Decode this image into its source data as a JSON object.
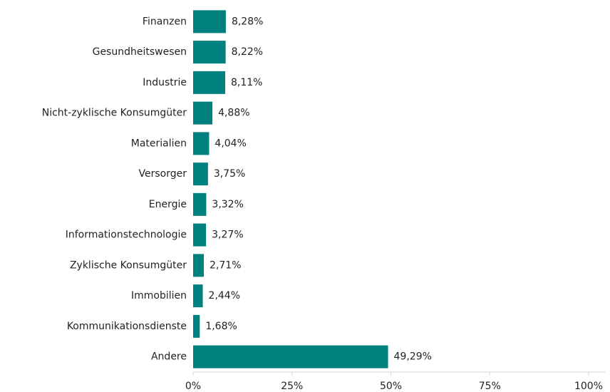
{
  "chart_data": {
    "type": "bar",
    "orientation": "horizontal",
    "categories": [
      "Finanzen",
      "Gesundheitswesen",
      "Industrie",
      "Nicht-zyklische Konsumgüter",
      "Materialien",
      "Versorger",
      "Energie",
      "Informationstechnologie",
      "Zyklische Konsumgüter",
      "Immobilien",
      "Kommunikationsdienste",
      "Andere"
    ],
    "values": [
      8.28,
      8.22,
      8.11,
      4.88,
      4.04,
      3.75,
      3.32,
      3.27,
      2.71,
      2.44,
      1.68,
      49.29
    ],
    "value_labels": [
      "8,28%",
      "8,22%",
      "8,11%",
      "4,88%",
      "4,04%",
      "3,75%",
      "3,32%",
      "3,27%",
      "2,71%",
      "2,44%",
      "1,68%",
      "49,29%"
    ],
    "color": "#00807f",
    "xlim": [
      0,
      100
    ],
    "xticks": [
      {
        "value": 0,
        "label": "0%"
      },
      {
        "value": 25,
        "label": "25%"
      },
      {
        "value": 50,
        "label": "50%"
      },
      {
        "value": 75,
        "label": "75%"
      },
      {
        "value": 100,
        "label": "100%"
      }
    ]
  }
}
